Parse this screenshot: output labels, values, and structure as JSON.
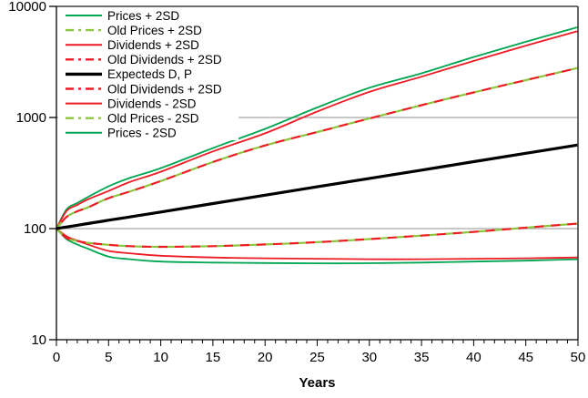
{
  "colors": {
    "background": "#FFFFFF",
    "green_solid": "#00A651",
    "green_dashed": "#8CC63F",
    "red": "#ED1C24",
    "black": "#000000",
    "gridline": "#A8A8A8",
    "axis": "#000000",
    "border": "#3F3F3F"
  },
  "chart_data": {
    "type": "line",
    "title": "",
    "xlabel": "Years",
    "ylabel": "",
    "x_scale": "linear",
    "y_scale": "log",
    "xlim": [
      0,
      50
    ],
    "ylim": [
      10,
      10000
    ],
    "x_tick_labels": [
      "0",
      "5",
      "10",
      "15",
      "20",
      "25",
      "30",
      "35",
      "40",
      "45",
      "50"
    ],
    "x_minor_tick_step": 1,
    "y_tick_values": [
      10,
      100,
      1000,
      10000
    ],
    "y_tick_labels": [
      "10",
      "100",
      "1000",
      "10000"
    ],
    "gridline_values": [
      100,
      1000
    ],
    "grid": "horizontal gridlines at 100 and 1000 only",
    "legend_position": "top-left inside plot, white background, no border",
    "x": [
      0,
      1,
      2,
      3,
      5,
      7,
      10,
      15,
      20,
      25,
      30,
      35,
      40,
      45,
      50
    ],
    "series": [
      {
        "name": "Prices + 2SD",
        "color": "#00A651",
        "dash": false,
        "width": 1.8,
        "values": [
          100,
          150,
          170,
          192,
          240,
          285,
          350,
          530,
          790,
          1230,
          1850,
          2500,
          3500,
          4800,
          6500
        ]
      },
      {
        "name": "Old Prices + 2SD",
        "color": "#8CC63F",
        "dash": true,
        "width": 2.2,
        "values": [
          100,
          128,
          143,
          155,
          188,
          215,
          268,
          397,
          560,
          740,
          980,
          1290,
          1680,
          2170,
          2790
        ]
      },
      {
        "name": "Dividends + 2SD",
        "color": "#ED1C24",
        "dash": false,
        "width": 1.8,
        "values": [
          100,
          145,
          163,
          183,
          218,
          262,
          325,
          495,
          720,
          1130,
          1700,
          2330,
          3230,
          4430,
          6000
        ]
      },
      {
        "name": "Old Dividends + 2SD",
        "color": "#ED1C24",
        "dash": true,
        "width": 2.2,
        "values": [
          100,
          128,
          143,
          155,
          188,
          215,
          268,
          397,
          560,
          740,
          980,
          1290,
          1680,
          2170,
          2790
        ]
      },
      {
        "name": "Expecteds D, P",
        "color": "#000000",
        "dash": false,
        "width": 3.2,
        "values": [
          100,
          103.5,
          107,
          111,
          119,
          127,
          141,
          168,
          200,
          238,
          283,
          336,
          400,
          476,
          566
        ]
      },
      {
        "name": "Old Dividends + 2SD",
        "color": "#ED1C24",
        "dash": true,
        "width": 2.2,
        "values": [
          100,
          82,
          77.5,
          74.5,
          71.5,
          69.5,
          68.5,
          69.5,
          72,
          75.5,
          80.5,
          86.5,
          93.5,
          102,
          111
        ]
      },
      {
        "name": "Dividends - 2SD",
        "color": "#ED1C24",
        "dash": false,
        "width": 1.8,
        "values": [
          100,
          85,
          78,
          72,
          63,
          60,
          57,
          55,
          54,
          53.5,
          53,
          53,
          53.5,
          54,
          55
        ]
      },
      {
        "name": "Old Prices - 2SD",
        "color": "#8CC63F",
        "dash": true,
        "width": 2.2,
        "values": [
          100,
          82,
          77.5,
          74.5,
          71.5,
          69.5,
          68.5,
          69.5,
          72,
          75.5,
          80.5,
          86.5,
          93.5,
          102,
          111
        ]
      },
      {
        "name": "Prices - 2SD",
        "color": "#00A651",
        "dash": false,
        "width": 1.8,
        "values": [
          100,
          80,
          72,
          66,
          56,
          53,
          50.5,
          49.5,
          49,
          48.7,
          48.8,
          49.5,
          50.5,
          51.5,
          53
        ]
      }
    ]
  }
}
